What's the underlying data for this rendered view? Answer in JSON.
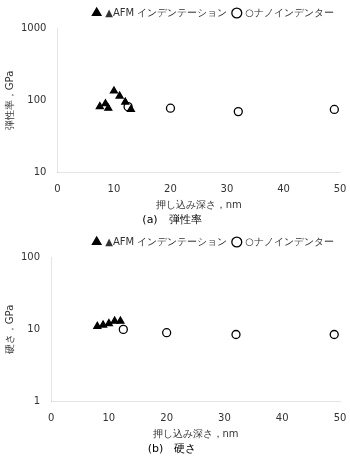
{
  "chart_data": [
    {
      "type": "scatter",
      "title": "(a)　弾性率",
      "xlabel": "押し込み深さ，nm",
      "ylabel": "弾性率，GPa",
      "series": [
        {
          "name": "▲AFM インデンテーション",
          "color": "#000000",
          "marker": "triangle",
          "x": [
            7.5,
            8.5,
            9.0,
            10.0,
            11.0,
            12.0,
            13.0
          ],
          "values": [
            82,
            90,
            78,
            135,
            115,
            95,
            75
          ]
        },
        {
          "name": "○ナノインデンター",
          "color": "#000000",
          "marker": "open_circle",
          "x": [
            12.5,
            20.0,
            32.0,
            49.0
          ],
          "values": [
            82,
            78,
            70,
            75
          ]
        }
      ],
      "xlim": [
        0,
        50
      ],
      "xticks": [
        0,
        10,
        20,
        30,
        40,
        50
      ],
      "ylim": [
        10,
        1000
      ],
      "yticks": [
        10,
        100,
        1000
      ],
      "log": "y",
      "grid": false,
      "legend": "upper right"
    },
    {
      "type": "scatter",
      "title": "(b)　硬さ",
      "xlabel": "押し込み深さ，nm",
      "ylabel": "硬さ，GPa",
      "series": [
        {
          "name": "▲AFM インデンテーション",
          "color": "#000000",
          "marker": "triangle",
          "x": [
            8.0,
            9.0,
            10.0,
            11.0,
            12.0
          ],
          "values": [
            11.0,
            11.5,
            12.0,
            13.0,
            13.0
          ]
        },
        {
          "name": "○ナノインデンター",
          "color": "#000000",
          "marker": "open_circle",
          "x": [
            12.5,
            20.0,
            32.0,
            49.0
          ],
          "values": [
            10.0,
            9.0,
            8.5,
            8.5
          ]
        }
      ],
      "xlim": [
        0,
        50
      ],
      "xticks": [
        0,
        10,
        20,
        30,
        40,
        50
      ],
      "ylim": [
        1,
        100
      ],
      "yticks": [
        1,
        10,
        100
      ],
      "log": "y",
      "grid": false,
      "legend": "upper right"
    }
  ]
}
